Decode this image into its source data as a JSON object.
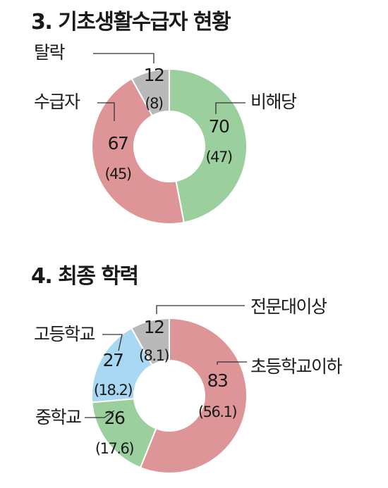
{
  "chart_data": [
    {
      "type": "pie",
      "variant": "donut",
      "title": "3. 기초생활수급자 현황",
      "start": "top",
      "direction": "clockwise",
      "slices": [
        {
          "label": "비해당",
          "value": 70,
          "percent": "47",
          "color": "#9bcf9e"
        },
        {
          "label": "수급자",
          "value": 67,
          "percent": "45",
          "color": "#de9597"
        },
        {
          "label": "탈락",
          "value": 12,
          "percent": "8",
          "color": "#b9b9b9"
        }
      ]
    },
    {
      "type": "pie",
      "variant": "donut",
      "title": "4. 최종 학력",
      "start": "top",
      "direction": "clockwise",
      "slices": [
        {
          "label": "초등학교이하",
          "value": 83,
          "percent": "56.1",
          "color": "#de9597"
        },
        {
          "label": "중학교",
          "value": 26,
          "percent": "17.6",
          "color": "#9bcf9e"
        },
        {
          "label": "고등학교",
          "value": 27,
          "percent": "18.2",
          "color": "#a9d8f2"
        },
        {
          "label": "전문대이상",
          "value": 12,
          "percent": "8.1",
          "color": "#b9b9b9"
        }
      ]
    }
  ]
}
